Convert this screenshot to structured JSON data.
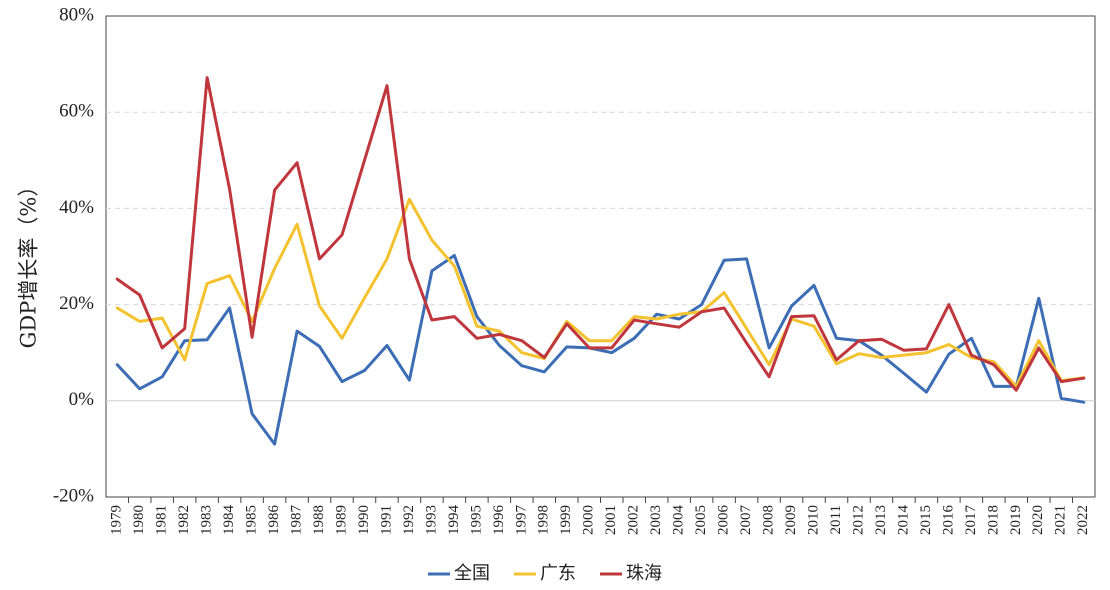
{
  "chart_data": {
    "type": "line",
    "title": "",
    "xlabel": "",
    "ylabel": "GDP增长率（%）",
    "ylim": [
      -20,
      80
    ],
    "yticks": [
      -20,
      0,
      20,
      40,
      60,
      80
    ],
    "ytick_labels": [
      "-20%",
      "0%",
      "20%",
      "40%",
      "60%",
      "80%"
    ],
    "grid": "horizontal dashed",
    "legend_position": "bottom",
    "categories": [
      "1979",
      "1980",
      "1981",
      "1982",
      "1983",
      "1984",
      "1985",
      "1986",
      "1987",
      "1988",
      "1989",
      "1990",
      "1991",
      "1992",
      "1993",
      "1994",
      "1995",
      "1996",
      "1997",
      "1998",
      "1999",
      "2000",
      "2001",
      "2002",
      "2003",
      "2004",
      "2005",
      "2006",
      "2007",
      "2008",
      "2009",
      "2010",
      "2011",
      "2012",
      "2013",
      "2014",
      "2015",
      "2016",
      "2017",
      "2018",
      "2019",
      "2020",
      "2021",
      "2022"
    ],
    "series": [
      {
        "name": "全国",
        "color": "#3d6db5",
        "values": [
          7.5,
          2.5,
          5.0,
          12.5,
          12.7,
          19.3,
          -2.7,
          -9.0,
          14.5,
          11.3,
          4.0,
          6.3,
          11.5,
          4.3,
          27.0,
          30.2,
          17.5,
          11.5,
          7.3,
          6.0,
          11.2,
          11.0,
          10.0,
          13.0,
          18.0,
          17.0,
          20.0,
          29.2,
          29.5,
          11.0,
          19.7,
          24.0,
          13.0,
          12.5,
          9.5,
          5.7,
          1.8,
          9.7,
          13.0,
          3.0,
          3.0,
          21.3,
          0.5,
          -0.3
        ]
      },
      {
        "name": "广东",
        "color": "#f3c22e",
        "values": [
          19.3,
          16.5,
          17.2,
          8.5,
          24.4,
          26.0,
          16.5,
          27.5,
          36.7,
          19.7,
          13.0,
          21.4,
          29.5,
          41.9,
          33.4,
          28.0,
          15.5,
          14.5,
          10.0,
          8.8,
          16.5,
          12.5,
          12.5,
          17.5,
          17.0,
          18.0,
          18.5,
          22.5,
          15.0,
          7.5,
          17.0,
          15.5,
          7.7,
          9.8,
          9.0,
          9.5,
          10.0,
          11.7,
          9.0,
          8.1,
          3.0,
          12.5,
          4.2,
          4.8
        ]
      },
      {
        "name": "珠海",
        "color": "#c0363d",
        "values": [
          25.3,
          22.0,
          11.0,
          15.0,
          67.2,
          44.0,
          13.2,
          43.8,
          49.5,
          29.5,
          34.5,
          50.0,
          65.5,
          29.5,
          16.8,
          17.5,
          13.0,
          13.8,
          12.5,
          9.0,
          16.0,
          11.0,
          11.0,
          16.8,
          16.0,
          15.3,
          18.5,
          19.3,
          12.0,
          5.0,
          17.5,
          17.7,
          8.5,
          12.5,
          12.8,
          10.5,
          10.8,
          20.0,
          9.5,
          7.5,
          2.2,
          11.0,
          4.0,
          4.7
        ]
      }
    ]
  }
}
